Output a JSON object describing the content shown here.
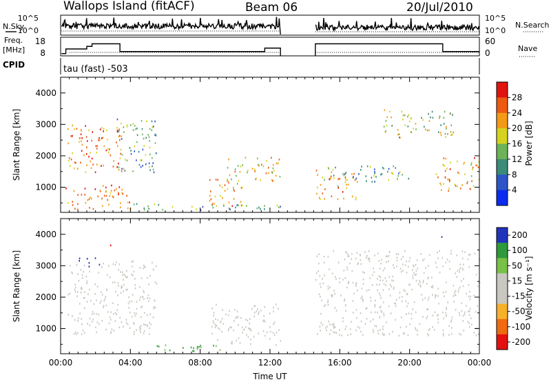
{
  "header": {
    "station": "Wallops Island (fitACF)",
    "beam": "Beam 06",
    "date": "20/Jul/2010"
  },
  "strip_labels": {
    "nsky": "N.Sky",
    "freq_line1": "Freq.",
    "freq_line2": "[MHz]",
    "cpid": "CPID",
    "nsearch": "N.Search",
    "nave": "Nave",
    "cpid_value": "tau (fast) -503"
  },
  "strip_ticks": {
    "noise_left": [
      "10^5",
      "10^0"
    ],
    "noise_right": [
      "10^5",
      "10^0"
    ],
    "freq_left": [
      "18",
      "8"
    ],
    "nave_right": [
      "60",
      "0"
    ]
  },
  "colors": {
    "power": [
      "#0b2bf0",
      "#2e55c8",
      "#3a8c78",
      "#6cb358",
      "#d6d21e",
      "#f39b15",
      "#ee5a12",
      "#e0140e"
    ],
    "velocity": [
      "#e41010",
      "#f06a12",
      "#f7b02a",
      "#c8c8c0",
      "#c8c8c0",
      "#78c046",
      "#2f9a3c",
      "#2233bb"
    ]
  },
  "chart_data": [
    {
      "type": "heatmap",
      "name": "power",
      "xlabel": "",
      "ylabel": "Slant Range [km]",
      "xlim": [
        0,
        24
      ],
      "ylim": [
        200,
        4500
      ],
      "y_ticks": [
        1000,
        2000,
        3000,
        4000
      ],
      "colorbar": {
        "label": "Power [dB]",
        "range": [
          0,
          32
        ],
        "tick_values": [
          4,
          8,
          12,
          16,
          20,
          24,
          28
        ],
        "tick_labels": [
          "4",
          "8",
          "12",
          "16",
          "20",
          "24",
          "28"
        ]
      },
      "data_gap": [
        12.6,
        14.6
      ],
      "features": [
        {
          "t": [
            0.4,
            3.6
          ],
          "range": [
            1500,
            3000
          ],
          "power": 24
        },
        {
          "t": [
            3.2,
            5.5
          ],
          "range": [
            1500,
            3200
          ],
          "power": 12
        },
        {
          "t": [
            0.2,
            4.0
          ],
          "range": [
            300,
            1100
          ],
          "power": 26
        },
        {
          "t": [
            4.0,
            12.6
          ],
          "range": [
            300,
            500
          ],
          "power": 12
        },
        {
          "t": [
            8.5,
            10.5
          ],
          "range": [
            400,
            1300
          ],
          "power": 22
        },
        {
          "t": [
            9.5,
            12.6
          ],
          "range": [
            1200,
            2000
          ],
          "power": 20
        },
        {
          "t": [
            14.6,
            17.0
          ],
          "range": [
            600,
            1600
          ],
          "power": 22
        },
        {
          "t": [
            15.0,
            20.0
          ],
          "range": [
            1200,
            1700
          ],
          "power": 12
        },
        {
          "t": [
            18.5,
            22.5
          ],
          "range": [
            2600,
            3500
          ],
          "power": 16
        },
        {
          "t": [
            21.5,
            24.0
          ],
          "range": [
            900,
            2000
          ],
          "power": 22
        }
      ]
    },
    {
      "type": "heatmap",
      "name": "velocity",
      "xlabel": "Time UT",
      "ylabel": "Slant Range [km]",
      "xlim": [
        0,
        24
      ],
      "ylim": [
        200,
        4500
      ],
      "x_ticks": [
        0,
        4,
        8,
        12,
        16,
        20,
        24
      ],
      "x_tick_labels": [
        "00:00",
        "04:00",
        "08:00",
        "12:00",
        "16:00",
        "20:00",
        "00:00"
      ],
      "y_ticks": [
        1000,
        2000,
        3000,
        4000
      ],
      "colorbar": {
        "label": "Velocity [m s⁻¹]",
        "tick_labels": [
          "200",
          "100",
          "50",
          "15",
          "-15",
          "-50",
          "-100",
          "-200"
        ]
      },
      "data_gap": [
        12.6,
        14.6
      ],
      "features": [
        {
          "t": [
            0.4,
            5.5
          ],
          "range": [
            800,
            3200
          ],
          "velocity": 0
        },
        {
          "t": [
            1.0,
            2.2
          ],
          "range": [
            3000,
            3300
          ],
          "velocity": 200
        },
        {
          "t": [
            2.8,
            3.2
          ],
          "range": [
            3600,
            3800
          ],
          "velocity": -200
        },
        {
          "t": [
            4.5,
            9.5
          ],
          "range": [
            300,
            500
          ],
          "velocity": 60
        },
        {
          "t": [
            8.5,
            12.6
          ],
          "range": [
            500,
            1800
          ],
          "velocity": 0
        },
        {
          "t": [
            14.6,
            24.0
          ],
          "range": [
            800,
            3500
          ],
          "velocity": 0
        },
        {
          "t": [
            21.6,
            21.9
          ],
          "range": [
            3800,
            4000
          ],
          "velocity": 200
        }
      ]
    }
  ]
}
